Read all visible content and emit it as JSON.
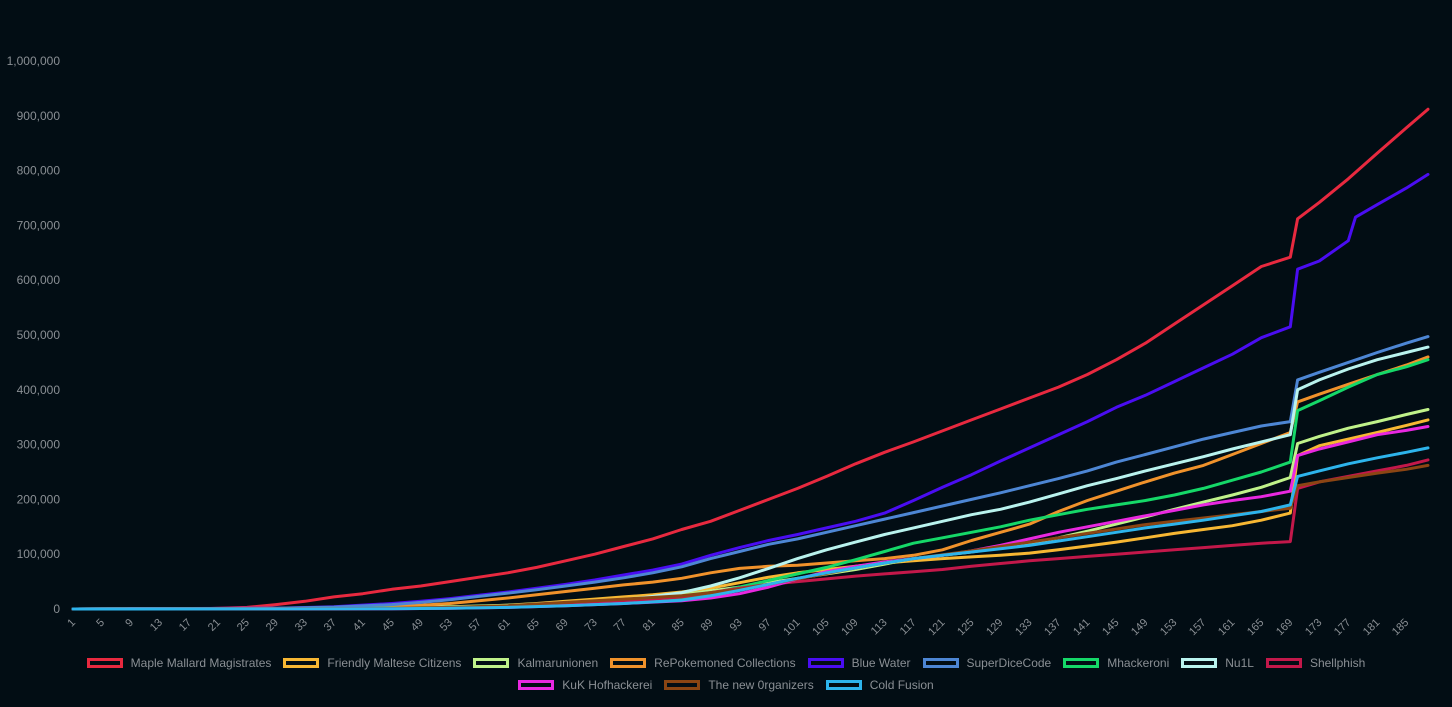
{
  "chart_data": {
    "type": "line",
    "title": "",
    "xlabel": "",
    "ylabel": "",
    "x_range": [
      1,
      188
    ],
    "ylim": [
      0,
      1000000
    ],
    "y_ticks": [
      0,
      100000,
      200000,
      300000,
      400000,
      500000,
      600000,
      700000,
      800000,
      900000,
      1000000
    ],
    "y_tick_labels": [
      "0",
      "100,000",
      "200,000",
      "300,000",
      "400,000",
      "500,000",
      "600,000",
      "700,000",
      "800,000",
      "900,000",
      "1,000,000"
    ],
    "x_tick_labels": [
      "1",
      "5",
      "9",
      "13",
      "17",
      "21",
      "25",
      "29",
      "33",
      "37",
      "41",
      "45",
      "49",
      "53",
      "57",
      "61",
      "65",
      "69",
      "73",
      "77",
      "81",
      "85",
      "89",
      "93",
      "97",
      "101",
      "105",
      "109",
      "113",
      "117",
      "121",
      "125",
      "129",
      "133",
      "137",
      "141",
      "145",
      "149",
      "153",
      "157",
      "161",
      "165",
      "169",
      "173",
      "177",
      "181",
      "185"
    ],
    "grid": false,
    "legend_position": "bottom",
    "series": [
      {
        "name": "Maple Mallard Magistrates",
        "color": "#e8293f",
        "x": [
          1,
          20,
          25,
          29,
          33,
          37,
          41,
          45,
          49,
          53,
          57,
          61,
          65,
          69,
          73,
          77,
          81,
          85,
          89,
          93,
          97,
          101,
          105,
          109,
          113,
          117,
          121,
          125,
          129,
          133,
          137,
          141,
          145,
          149,
          153,
          157,
          161,
          165,
          169,
          170,
          173,
          177,
          181,
          185,
          188
        ],
        "values": [
          0,
          1000,
          3000,
          8000,
          14000,
          22000,
          28000,
          36000,
          42000,
          50000,
          58000,
          66000,
          76000,
          88000,
          100000,
          114000,
          128000,
          145000,
          160000,
          180000,
          200000,
          220000,
          242000,
          265000,
          286000,
          305000,
          325000,
          345000,
          365000,
          385000,
          405000,
          428000,
          455000,
          485000,
          520000,
          555000,
          590000,
          625000,
          642000,
          712000,
          742000,
          785000,
          832000,
          878000,
          912000
        ]
      },
      {
        "name": "Friendly Maltese Citizens",
        "color": "#f7b733",
        "x": [
          1,
          25,
          29,
          33,
          37,
          41,
          45,
          49,
          53,
          57,
          61,
          65,
          69,
          73,
          77,
          81,
          85,
          89,
          93,
          97,
          101,
          105,
          109,
          113,
          117,
          121,
          125,
          129,
          133,
          137,
          141,
          145,
          149,
          153,
          157,
          161,
          165,
          169,
          170,
          173,
          177,
          181,
          185,
          188
        ],
        "values": [
          0,
          500,
          1000,
          1500,
          2000,
          2500,
          3000,
          3500,
          4000,
          5000,
          7000,
          10000,
          14000,
          18000,
          22000,
          26000,
          31000,
          38000,
          48000,
          58000,
          66000,
          72000,
          78000,
          84000,
          88000,
          92000,
          95000,
          98000,
          102000,
          108000,
          115000,
          122000,
          130000,
          138000,
          145000,
          152000,
          162000,
          175000,
          280000,
          298000,
          310000,
          322000,
          335000,
          345000
        ]
      },
      {
        "name": "Kalmarunionen",
        "color": "#c0f28a",
        "x": [
          1,
          29,
          37,
          45,
          53,
          61,
          69,
          77,
          85,
          89,
          93,
          97,
          101,
          105,
          109,
          113,
          117,
          121,
          125,
          129,
          133,
          137,
          141,
          145,
          149,
          153,
          157,
          161,
          165,
          169,
          170,
          173,
          177,
          181,
          185,
          188
        ],
        "values": [
          0,
          500,
          1000,
          2000,
          4000,
          7000,
          12000,
          18000,
          26000,
          33000,
          40000,
          48000,
          56000,
          64000,
          72000,
          82000,
          92000,
          98000,
          104000,
          112000,
          120000,
          130000,
          142000,
          155000,
          168000,
          182000,
          195000,
          208000,
          222000,
          240000,
          302000,
          315000,
          330000,
          342000,
          355000,
          364000
        ]
      },
      {
        "name": "RePokemoned Collections",
        "color": "#f0922b",
        "x": [
          1,
          29,
          37,
          45,
          49,
          53,
          57,
          61,
          65,
          69,
          73,
          77,
          81,
          85,
          89,
          93,
          97,
          101,
          105,
          109,
          113,
          117,
          121,
          125,
          129,
          133,
          137,
          141,
          145,
          149,
          153,
          157,
          161,
          165,
          169,
          170,
          173,
          177,
          181,
          185,
          188
        ],
        "values": [
          0,
          500,
          1000,
          4000,
          7000,
          10000,
          15000,
          20000,
          26000,
          32000,
          38000,
          44000,
          49000,
          56000,
          66000,
          74000,
          78000,
          80000,
          84000,
          88000,
          92000,
          98000,
          108000,
          125000,
          140000,
          155000,
          178000,
          198000,
          215000,
          232000,
          248000,
          262000,
          282000,
          302000,
          322000,
          378000,
          392000,
          410000,
          428000,
          445000,
          460000
        ]
      },
      {
        "name": "Blue Water",
        "color": "#4a0df2",
        "x": [
          1,
          29,
          37,
          45,
          49,
          53,
          57,
          61,
          65,
          69,
          73,
          77,
          81,
          85,
          89,
          93,
          97,
          101,
          105,
          109,
          113,
          117,
          121,
          125,
          129,
          133,
          137,
          141,
          145,
          149,
          153,
          157,
          161,
          165,
          169,
          170,
          173,
          177,
          178,
          181,
          185,
          188
        ],
        "values": [
          0,
          1500,
          4000,
          10000,
          14000,
          19000,
          25000,
          31000,
          38000,
          45000,
          53000,
          62000,
          71000,
          82000,
          98000,
          112000,
          125000,
          136000,
          148000,
          160000,
          175000,
          198000,
          222000,
          245000,
          270000,
          294000,
          318000,
          342000,
          368000,
          390000,
          415000,
          440000,
          465000,
          495000,
          515000,
          620000,
          635000,
          672000,
          715000,
          738000,
          768000,
          793000
        ]
      },
      {
        "name": "SuperDiceCode",
        "color": "#4d86d4",
        "x": [
          1,
          29,
          37,
          45,
          49,
          53,
          57,
          61,
          65,
          69,
          73,
          77,
          81,
          85,
          89,
          93,
          97,
          101,
          105,
          109,
          113,
          117,
          121,
          125,
          129,
          133,
          137,
          141,
          145,
          149,
          153,
          157,
          161,
          165,
          169,
          170,
          173,
          177,
          181,
          185,
          188
        ],
        "values": [
          0,
          1200,
          3500,
          8000,
          12000,
          17000,
          23000,
          29000,
          35000,
          42000,
          49000,
          57000,
          66000,
          77000,
          92000,
          105000,
          118000,
          128000,
          140000,
          152000,
          164000,
          176000,
          188000,
          200000,
          212000,
          225000,
          238000,
          252000,
          268000,
          282000,
          296000,
          310000,
          322000,
          334000,
          342000,
          418000,
          432000,
          450000,
          468000,
          485000,
          497000
        ]
      },
      {
        "name": "Mhackeroni",
        "color": "#15d868",
        "x": [
          1,
          37,
          45,
          53,
          61,
          69,
          77,
          85,
          89,
          93,
          97,
          101,
          105,
          109,
          113,
          117,
          121,
          125,
          129,
          133,
          137,
          141,
          145,
          149,
          153,
          157,
          161,
          165,
          169,
          170,
          173,
          177,
          181,
          185,
          188
        ],
        "values": [
          0,
          500,
          1500,
          3000,
          5000,
          8000,
          12000,
          18000,
          28000,
          40000,
          52000,
          64000,
          76000,
          90000,
          105000,
          120000,
          130000,
          140000,
          150000,
          162000,
          172000,
          182000,
          190000,
          198000,
          208000,
          220000,
          235000,
          250000,
          268000,
          362000,
          380000,
          405000,
          428000,
          442000,
          455000
        ]
      },
      {
        "name": "Nu1L",
        "color": "#b9f3ee",
        "x": [
          1,
          45,
          53,
          61,
          69,
          77,
          85,
          89,
          93,
          97,
          101,
          105,
          109,
          113,
          117,
          121,
          125,
          129,
          133,
          137,
          141,
          145,
          149,
          153,
          157,
          161,
          165,
          169,
          170,
          173,
          177,
          181,
          185,
          188
        ],
        "values": [
          0,
          1000,
          2500,
          5000,
          9000,
          16000,
          30000,
          42000,
          57000,
          74000,
          92000,
          108000,
          122000,
          136000,
          148000,
          160000,
          172000,
          182000,
          195000,
          210000,
          225000,
          238000,
          252000,
          265000,
          278000,
          292000,
          305000,
          318000,
          400000,
          418000,
          438000,
          455000,
          468000,
          478000
        ]
      },
      {
        "name": "Shellphish",
        "color": "#c3184a",
        "x": [
          1,
          37,
          45,
          53,
          61,
          69,
          77,
          85,
          89,
          93,
          97,
          101,
          105,
          109,
          113,
          117,
          121,
          125,
          129,
          133,
          137,
          141,
          145,
          149,
          153,
          157,
          161,
          165,
          169,
          170,
          173,
          177,
          181,
          185,
          188
        ],
        "values": [
          0,
          500,
          1000,
          2500,
          5000,
          9000,
          14000,
          22000,
          30000,
          38000,
          45000,
          50000,
          55000,
          60000,
          64000,
          68000,
          72000,
          78000,
          83000,
          88000,
          92000,
          96000,
          100000,
          104000,
          108000,
          112000,
          116000,
          120000,
          123000,
          220000,
          232000,
          242000,
          252000,
          262000,
          272000
        ]
      },
      {
        "name": "KuK Hofhackerei",
        "color": "#e928e0",
        "x": [
          1,
          45,
          53,
          61,
          69,
          77,
          85,
          89,
          93,
          97,
          101,
          105,
          109,
          113,
          117,
          121,
          125,
          129,
          133,
          137,
          141,
          145,
          149,
          153,
          157,
          161,
          165,
          169,
          170,
          173,
          177,
          181,
          185,
          188
        ],
        "values": [
          0,
          500,
          1500,
          3000,
          6000,
          10000,
          15000,
          20000,
          28000,
          40000,
          55000,
          68000,
          78000,
          86000,
          92000,
          98000,
          106000,
          116000,
          128000,
          140000,
          150000,
          160000,
          170000,
          180000,
          190000,
          198000,
          205000,
          215000,
          280000,
          292000,
          305000,
          318000,
          326000,
          333000
        ]
      },
      {
        "name": "The new 0rganizers",
        "color": "#8b4513",
        "x": [
          1,
          45,
          53,
          61,
          69,
          77,
          85,
          89,
          93,
          97,
          101,
          105,
          109,
          113,
          117,
          121,
          125,
          129,
          133,
          137,
          141,
          145,
          149,
          153,
          157,
          161,
          165,
          169,
          170,
          173,
          177,
          181,
          185,
          188
        ],
        "values": [
          0,
          1000,
          3000,
          6000,
          12000,
          18000,
          24000,
          30000,
          36000,
          45000,
          55000,
          65000,
          75000,
          84000,
          92000,
          99000,
          106000,
          114000,
          122000,
          130000,
          138000,
          146000,
          154000,
          160000,
          166000,
          172000,
          178000,
          184000,
          225000,
          232000,
          240000,
          248000,
          255000,
          262000
        ]
      },
      {
        "name": "Cold Fusion",
        "color": "#2db4ec",
        "x": [
          1,
          45,
          53,
          61,
          69,
          77,
          85,
          89,
          93,
          97,
          101,
          105,
          109,
          113,
          117,
          121,
          125,
          129,
          133,
          137,
          141,
          145,
          149,
          153,
          157,
          161,
          165,
          169,
          170,
          173,
          177,
          181,
          185,
          188
        ],
        "values": [
          0,
          500,
          1500,
          3000,
          6000,
          10000,
          16000,
          24000,
          34000,
          45000,
          56000,
          66000,
          75000,
          84000,
          92000,
          98000,
          104000,
          110000,
          116000,
          124000,
          132000,
          140000,
          148000,
          155000,
          162000,
          170000,
          178000,
          190000,
          242000,
          252000,
          265000,
          276000,
          286000,
          294000
        ]
      }
    ]
  }
}
